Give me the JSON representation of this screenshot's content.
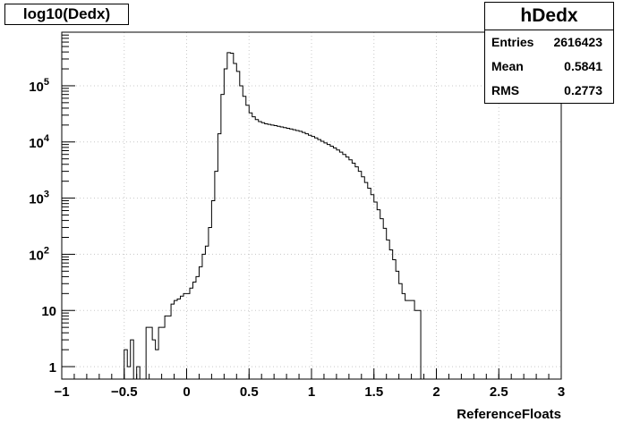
{
  "chart_data": {
    "type": "histogram",
    "title": "log10(Dedx)",
    "xlabel": "ReferenceFloats",
    "ylabel": "",
    "xlim": [
      -1,
      3
    ],
    "ylim": [
      0.6,
      900000
    ],
    "log_y": true,
    "grid": true,
    "x_ticks": [
      "−1",
      "−0.5",
      "0",
      "0.5",
      "1",
      "1.5",
      "2",
      "2.5",
      "3"
    ],
    "y_ticks": [
      {
        "value": 1,
        "base": "1",
        "exp": ""
      },
      {
        "value": 10,
        "base": "10",
        "exp": ""
      },
      {
        "value": 100,
        "base": "10",
        "exp": "2"
      },
      {
        "value": 1000,
        "base": "10",
        "exp": "3"
      },
      {
        "value": 10000,
        "base": "10",
        "exp": "4"
      },
      {
        "value": 100000,
        "base": "10",
        "exp": "5"
      }
    ],
    "bin_width": 0.025,
    "x_start": -1.0,
    "counts": [
      0,
      0,
      0,
      0,
      0,
      0,
      0,
      0,
      0,
      0,
      0,
      0,
      0,
      0,
      0,
      0,
      0,
      0,
      0,
      0,
      2,
      1,
      3,
      0,
      1,
      0,
      0,
      5,
      5,
      3,
      2,
      5,
      5,
      8,
      8,
      13,
      15,
      16,
      18,
      20,
      20,
      25,
      32,
      40,
      60,
      100,
      140,
      300,
      900,
      3000,
      14000,
      70000,
      200000,
      390000,
      380000,
      250000,
      180000,
      100000,
      65000,
      45000,
      33000,
      28000,
      25000,
      23000,
      22000,
      21000,
      20500,
      20000,
      19500,
      19000,
      18500,
      18000,
      17500,
      17000,
      16500,
      16000,
      15500,
      14800,
      14000,
      13200,
      12500,
      11800,
      11000,
      10300,
      9600,
      9000,
      8400,
      7800,
      7200,
      6600,
      6000,
      5400,
      4800,
      4200,
      3600,
      3000,
      2400,
      1900,
      1500,
      1150,
      850,
      620,
      430,
      290,
      180,
      120,
      80,
      50,
      30,
      20,
      15,
      15,
      15,
      10,
      10,
      0,
      0,
      0,
      0,
      0,
      0,
      0,
      0,
      0,
      0,
      0,
      0,
      0,
      0,
      0,
      0,
      0,
      0,
      0,
      0,
      0,
      0,
      0,
      0,
      0,
      0,
      0,
      0,
      0,
      0,
      0,
      0,
      0,
      0,
      0,
      0,
      0,
      0,
      0,
      0,
      0,
      0,
      0,
      0,
      0,
      0,
      0,
      0,
      0,
      0,
      0,
      0,
      0,
      0,
      0,
      0,
      0,
      0,
      0,
      0,
      0,
      0,
      0,
      0,
      0
    ]
  },
  "stats": {
    "name": "hDedx",
    "rows": [
      {
        "label": "Entries",
        "value": "2616423"
      },
      {
        "label": "Mean",
        "value": "0.5841"
      },
      {
        "label": "RMS",
        "value": "0.2773"
      }
    ]
  }
}
